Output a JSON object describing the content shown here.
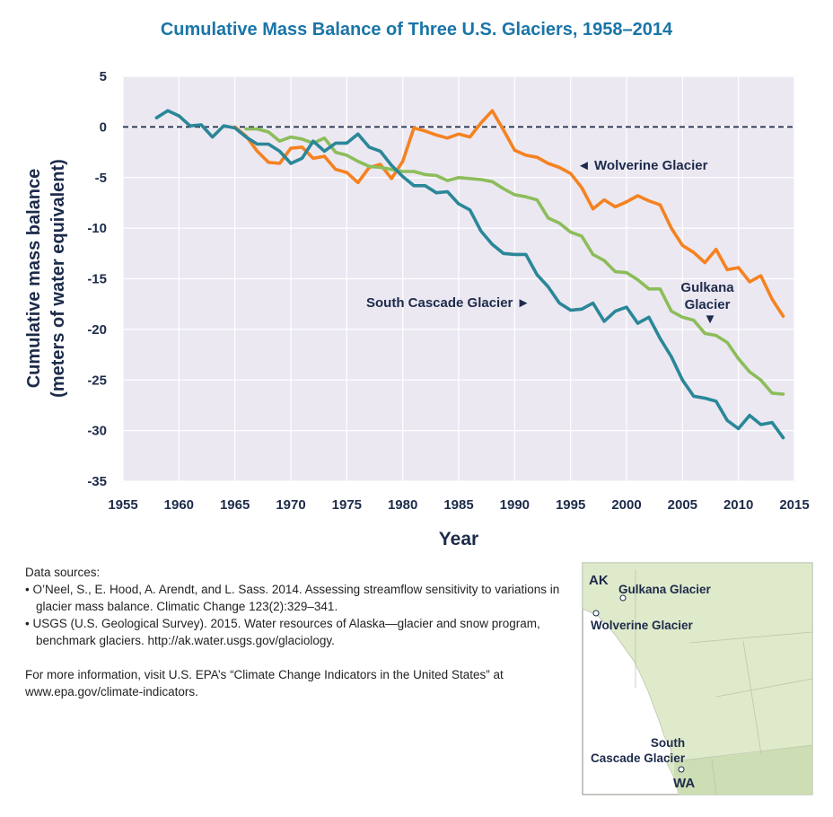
{
  "chart_data": {
    "type": "line",
    "title": "Cumulative Mass Balance of Three U.S. Glaciers, 1958–2014",
    "xlabel": "Year",
    "ylabel": [
      "Cumulative mass balance",
      "(meters of water equivalent)"
    ],
    "xlim": [
      1955,
      2015
    ],
    "ylim": [
      -35,
      5
    ],
    "xticks": [
      1955,
      1960,
      1965,
      1970,
      1975,
      1980,
      1985,
      1990,
      1995,
      2000,
      2005,
      2010,
      2015
    ],
    "yticks": [
      5,
      0,
      -5,
      -10,
      -15,
      -20,
      -25,
      -30,
      -35
    ],
    "grid": true,
    "zero_line": "dashed",
    "series": [
      {
        "name": "Wolverine Glacier",
        "color": "#f58220",
        "label": "◄ Wolverine Glacier",
        "x": [
          1965,
          1966,
          1967,
          1968,
          1969,
          1970,
          1971,
          1972,
          1973,
          1974,
          1975,
          1976,
          1977,
          1978,
          1979,
          1980,
          1981,
          1982,
          1983,
          1984,
          1985,
          1986,
          1987,
          1988,
          1989,
          1990,
          1991,
          1992,
          1993,
          1994,
          1995,
          1996,
          1997,
          1998,
          1999,
          2000,
          2001,
          2002,
          2003,
          2004,
          2005,
          2006,
          2007,
          2008,
          2009,
          2010,
          2011,
          2012,
          2013,
          2014
        ],
        "y": [
          0,
          -0.9,
          -2.4,
          -3.5,
          -3.6,
          -2.1,
          -2.0,
          -3.1,
          -2.9,
          -4.2,
          -4.5,
          -5.5,
          -4.0,
          -3.7,
          -5.1,
          -3.4,
          -0.1,
          -0.4,
          -0.8,
          -1.1,
          -0.7,
          -1.0,
          0.4,
          1.6,
          -0.3,
          -2.3,
          -2.8,
          -3.0,
          -3.6,
          -4.0,
          -4.6,
          -6.0,
          -8.1,
          -7.2,
          -7.9,
          -7.4,
          -6.8,
          -7.3,
          -7.7,
          -10.0,
          -11.7,
          -12.4,
          -13.4,
          -12.1,
          -14.1,
          -13.9,
          -15.3,
          -14.7,
          -17.0,
          -18.7
        ]
      },
      {
        "name": "Gulkana Glacier",
        "color": "#8cbd5a",
        "label": [
          "Gulkana",
          "Glacier"
        ],
        "label_arrow": "▼",
        "x": [
          1966,
          1967,
          1968,
          1969,
          1970,
          1971,
          1972,
          1973,
          1974,
          1975,
          1976,
          1977,
          1978,
          1979,
          1980,
          1981,
          1982,
          1983,
          1984,
          1985,
          1986,
          1987,
          1988,
          1989,
          1990,
          1991,
          1992,
          1993,
          1994,
          1995,
          1996,
          1997,
          1998,
          1999,
          2000,
          2001,
          2002,
          2003,
          2004,
          2005,
          2006,
          2007,
          2008,
          2009,
          2010,
          2011,
          2012,
          2013,
          2014
        ],
        "y": [
          -0.2,
          -0.2,
          -0.5,
          -1.4,
          -1.0,
          -1.2,
          -1.6,
          -1.1,
          -2.5,
          -2.8,
          -3.4,
          -3.9,
          -4.0,
          -4.2,
          -4.4,
          -4.4,
          -4.7,
          -4.8,
          -5.3,
          -5.0,
          -5.1,
          -5.2,
          -5.4,
          -6.1,
          -6.7,
          -6.9,
          -7.2,
          -9.0,
          -9.5,
          -10.4,
          -10.8,
          -12.6,
          -13.2,
          -14.3,
          -14.4,
          -15.1,
          -16.0,
          -16.0,
          -18.2,
          -18.8,
          -19.1,
          -20.4,
          -20.6,
          -21.3,
          -22.9,
          -24.2,
          -25.0,
          -26.3,
          -26.4
        ]
      },
      {
        "name": "South Cascade Glacier",
        "color": "#2a8798",
        "label": "South Cascade Glacier ►",
        "x": [
          1958,
          1959,
          1960,
          1961,
          1962,
          1963,
          1964,
          1965,
          1966,
          1967,
          1968,
          1969,
          1970,
          1971,
          1972,
          1973,
          1974,
          1975,
          1976,
          1977,
          1978,
          1979,
          1980,
          1981,
          1982,
          1983,
          1984,
          1985,
          1986,
          1987,
          1988,
          1989,
          1990,
          1991,
          1992,
          1993,
          1994,
          1995,
          1996,
          1997,
          1998,
          1999,
          2000,
          2001,
          2002,
          2003,
          2004,
          2005,
          2006,
          2007,
          2008,
          2009,
          2010,
          2011,
          2012,
          2013,
          2014
        ],
        "y": [
          0.9,
          1.6,
          1.1,
          0.1,
          0.2,
          -1.0,
          0.1,
          -0.1,
          -1.0,
          -1.7,
          -1.7,
          -2.4,
          -3.6,
          -3.1,
          -1.4,
          -2.4,
          -1.6,
          -1.6,
          -0.7,
          -2.0,
          -2.4,
          -3.8,
          -4.9,
          -5.8,
          -5.8,
          -6.5,
          -6.4,
          -7.6,
          -8.2,
          -10.3,
          -11.6,
          -12.5,
          -12.6,
          -12.6,
          -14.6,
          -15.8,
          -17.4,
          -18.1,
          -18.0,
          -17.4,
          -19.2,
          -18.2,
          -17.8,
          -19.4,
          -18.8,
          -20.9,
          -22.7,
          -25.0,
          -26.6,
          -26.8,
          -27.1,
          -29.0,
          -29.8,
          -28.5,
          -29.4,
          -29.2,
          -30.7
        ]
      }
    ]
  },
  "sources": {
    "heading": "Data sources:",
    "items": [
      "• O’Neel, S., E. Hood, A. Arendt, and L. Sass. 2014. Assessing streamflow sensitivity to variations in glacier mass balance. Climatic Change 123(2):329–341.",
      "• USGS (U.S. Geological Survey). 2015. Water resources of Alaska—glacier and snow program, benchmark glaciers. http://ak.water.usgs.gov/glaciology."
    ],
    "more_info": "For more information, visit U.S. EPA’s “Climate Change Indicators in the United States” at www.epa.gov/climate-indicators."
  },
  "map": {
    "labels": {
      "ak": "AK",
      "gulkana": "Gulkana Glacier",
      "wolverine": "Wolverine Glacier",
      "south_cascade_1": "South",
      "south_cascade_2": "Cascade Glacier",
      "wa": "WA"
    },
    "colors": {
      "ocean": "#ffffff",
      "land": "#dfeacb",
      "states": "#cdddb4",
      "border": "#bcc6ad"
    }
  }
}
